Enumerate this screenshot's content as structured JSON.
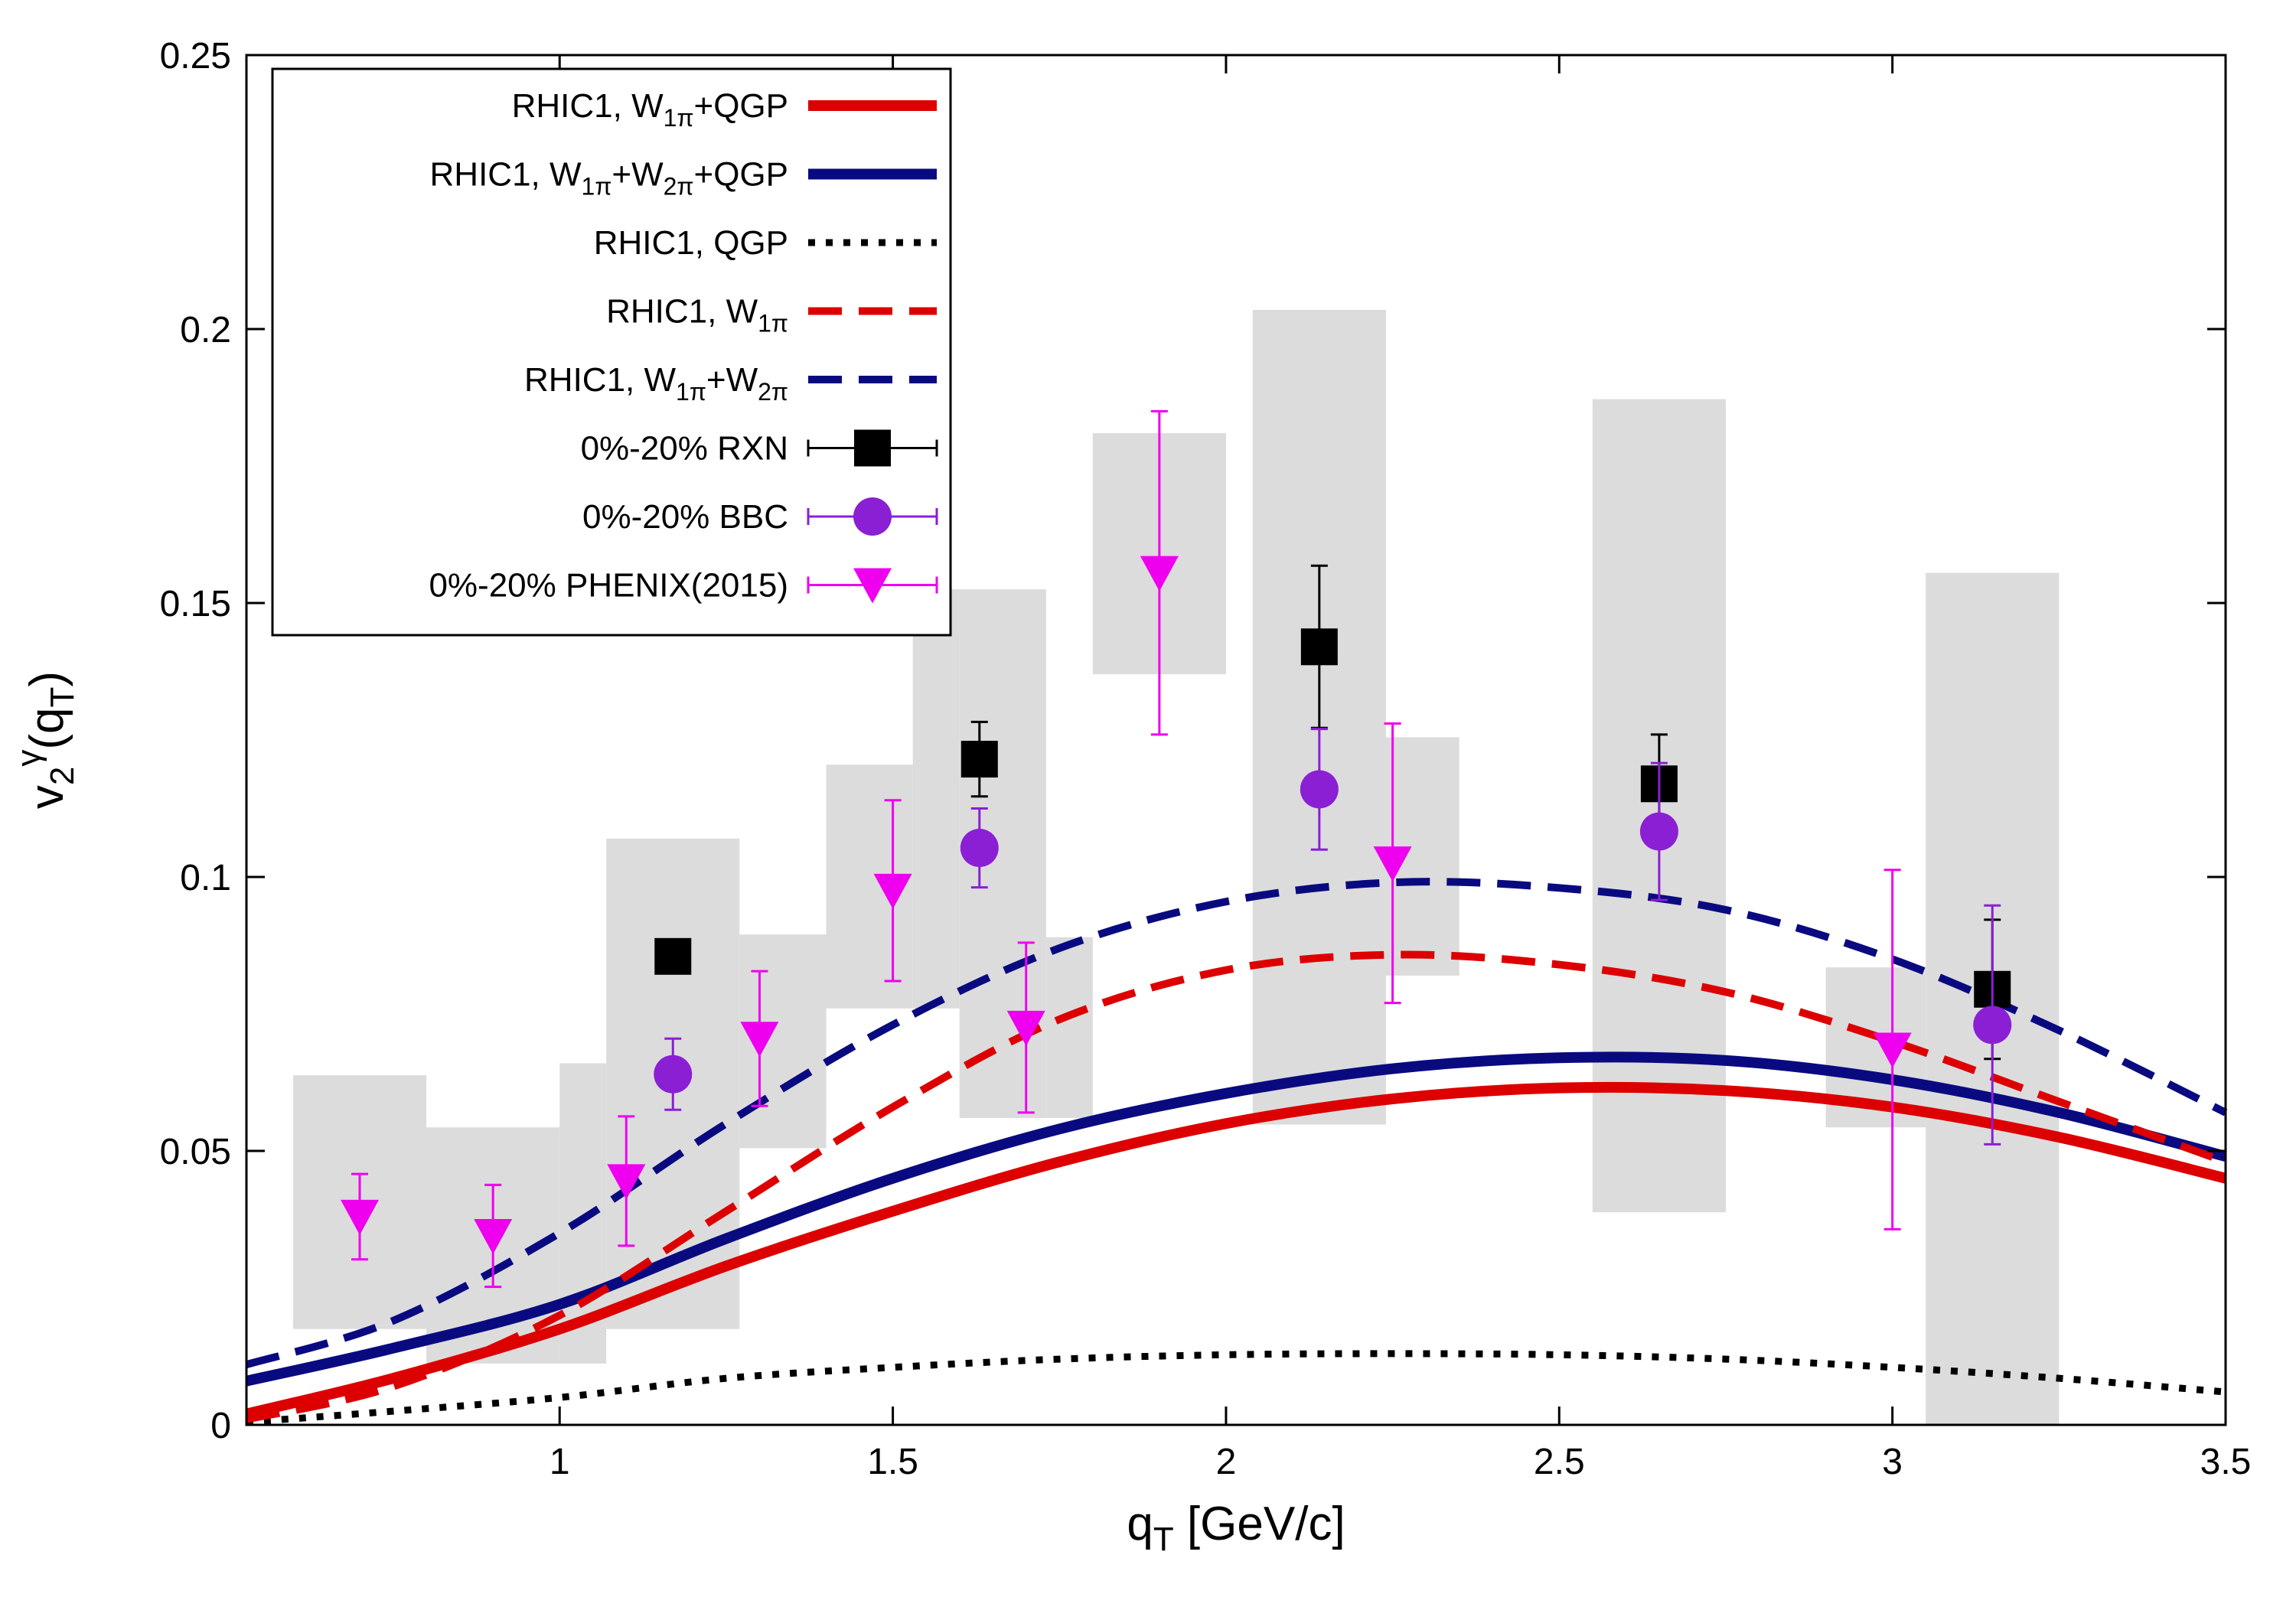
{
  "chart_data": {
    "type": "line",
    "xlabel": "q",
    "xlabel_sub": "T",
    "xlabel_unit": " [GeV/c]",
    "ylabel": "v",
    "ylabel_sub": "2",
    "ylabel_sup": "γ",
    "ylabel_paren_open": "(q",
    "ylabel_paren_sub": "T",
    "ylabel_paren_close": ")",
    "xlim": [
      0.53,
      3.5
    ],
    "ylim": [
      0,
      0.25
    ],
    "x_ticks": [
      1,
      1.5,
      2,
      2.5,
      3,
      3.5
    ],
    "x_tick_labels": [
      "1",
      "1.5",
      "2",
      "2.5",
      "3",
      "3.5"
    ],
    "y_ticks": [
      0,
      0.05,
      0.1,
      0.15,
      0.2,
      0.25
    ],
    "y_tick_labels": [
      "0",
      "0.05",
      "0.1",
      "0.15",
      "0.2",
      "0.25"
    ],
    "legend_position": "top-left",
    "curves": [
      {
        "id": "w1pi-qgp",
        "legend": [
          {
            "t": "RHIC1, W"
          },
          {
            "t": "1π",
            "sub": true
          },
          {
            "t": "+QGP"
          }
        ],
        "color": "#dd0000",
        "style": "solid-thick",
        "x": [
          0.53,
          0.75,
          1.0,
          1.25,
          1.5,
          1.75,
          2.0,
          2.25,
          2.5,
          2.75,
          3.0,
          3.25,
          3.5
        ],
        "y": [
          0.002,
          0.0085,
          0.0175,
          0.029,
          0.039,
          0.048,
          0.055,
          0.0595,
          0.0615,
          0.061,
          0.058,
          0.0525,
          0.045
        ]
      },
      {
        "id": "w1pi-w2pi-qgp",
        "legend": [
          {
            "t": "RHIC1, W"
          },
          {
            "t": "1π",
            "sub": true
          },
          {
            "t": "+W"
          },
          {
            "t": "2π",
            "sub": true
          },
          {
            "t": "+QGP"
          }
        ],
        "color": "#0a0a80",
        "style": "solid-thick",
        "x": [
          0.53,
          0.75,
          1.0,
          1.25,
          1.5,
          1.75,
          2.0,
          2.25,
          2.5,
          2.75,
          3.0,
          3.25,
          3.5
        ],
        "y": [
          0.008,
          0.014,
          0.022,
          0.034,
          0.045,
          0.054,
          0.0605,
          0.065,
          0.067,
          0.0665,
          0.063,
          0.057,
          0.049
        ]
      },
      {
        "id": "qgp",
        "legend": [
          {
            "t": "RHIC1, QGP"
          }
        ],
        "color": "#000000",
        "style": "dotted",
        "x": [
          0.53,
          0.75,
          1.0,
          1.25,
          1.5,
          1.75,
          2.0,
          2.25,
          2.5,
          2.75,
          3.0,
          3.25,
          3.5
        ],
        "y": [
          0.0005,
          0.0025,
          0.005,
          0.0085,
          0.0105,
          0.012,
          0.0128,
          0.013,
          0.0128,
          0.012,
          0.0105,
          0.0085,
          0.006
        ]
      },
      {
        "id": "w1pi",
        "legend": [
          {
            "t": "RHIC1, W"
          },
          {
            "t": "1π",
            "sub": true
          }
        ],
        "color": "#dd0000",
        "style": "dashed",
        "x": [
          0.53,
          0.75,
          1.0,
          1.25,
          1.5,
          1.75,
          2.0,
          2.25,
          2.5,
          2.75,
          3.0,
          3.25,
          3.5
        ],
        "y": [
          0.001,
          0.007,
          0.02,
          0.039,
          0.058,
          0.074,
          0.083,
          0.0858,
          0.084,
          0.079,
          0.07,
          0.059,
          0.048
        ]
      },
      {
        "id": "w1pi-w2pi",
        "legend": [
          {
            "t": "RHIC1, W"
          },
          {
            "t": "1π",
            "sub": true
          },
          {
            "t": "+W"
          },
          {
            "t": "2π",
            "sub": true
          }
        ],
        "color": "#0a0a80",
        "style": "dashed",
        "x": [
          0.53,
          0.75,
          1.0,
          1.25,
          1.5,
          1.75,
          2.0,
          2.25,
          2.5,
          2.75,
          3.0,
          3.25,
          3.5
        ],
        "y": [
          0.011,
          0.019,
          0.035,
          0.055,
          0.073,
          0.087,
          0.0955,
          0.099,
          0.098,
          0.094,
          0.085,
          0.072,
          0.057
        ]
      }
    ],
    "series": [
      {
        "id": "rxn",
        "legend": [
          {
            "t": "0%-20% RXN"
          }
        ],
        "marker": "square",
        "color": "#000000",
        "points": [
          {
            "x": 1.17,
            "y": 0.0855,
            "err": 0
          },
          {
            "x": 1.63,
            "y": 0.1215,
            "err": 0.0068
          },
          {
            "x": 2.14,
            "y": 0.142,
            "err": 0.0148
          },
          {
            "x": 2.65,
            "y": 0.117,
            "err": 0.009
          },
          {
            "x": 3.15,
            "y": 0.0795,
            "err": 0.0127
          }
        ]
      },
      {
        "id": "bbc",
        "legend": [
          {
            "t": "0%-20% BBC"
          }
        ],
        "marker": "circle",
        "color": "#8a1fd4",
        "points": [
          {
            "x": 1.17,
            "y": 0.064,
            "err": 0.0065
          },
          {
            "x": 1.63,
            "y": 0.1053,
            "err": 0.0072
          },
          {
            "x": 2.14,
            "y": 0.116,
            "err": 0.011
          },
          {
            "x": 2.65,
            "y": 0.1083,
            "err": 0.0125
          },
          {
            "x": 3.15,
            "y": 0.073,
            "err": 0.0218
          }
        ]
      },
      {
        "id": "phenix2015",
        "legend": [
          {
            "t": "0%-20% PHENIX(2015)"
          }
        ],
        "marker": "triangle-down",
        "color": "#ee00ee",
        "points": [
          {
            "x": 0.7,
            "y": 0.038,
            "err": 0.0078
          },
          {
            "x": 0.9,
            "y": 0.0345,
            "err": 0.0093
          },
          {
            "x": 1.1,
            "y": 0.0445,
            "err": 0.0118
          },
          {
            "x": 1.3,
            "y": 0.0705,
            "err": 0.0123
          },
          {
            "x": 1.5,
            "y": 0.0975,
            "err": 0.0165
          },
          {
            "x": 1.7,
            "y": 0.0725,
            "err": 0.0155
          },
          {
            "x": 1.9,
            "y": 0.1555,
            "err": 0.0295
          },
          {
            "x": 2.25,
            "y": 0.1025,
            "err": 0.0255
          },
          {
            "x": 3.0,
            "y": 0.0685,
            "err": 0.0328
          }
        ]
      }
    ],
    "systematic_boxes": [
      {
        "x0": 0.6,
        "x1": 0.8,
        "y0": 0.0175,
        "y1": 0.0638
      },
      {
        "x0": 0.8,
        "x1": 1.0,
        "y0": 0.0112,
        "y1": 0.0543
      },
      {
        "x0": 1.0,
        "x1": 1.07,
        "y0": 0.0112,
        "y1": 0.066
      },
      {
        "x0": 1.07,
        "x1": 1.27,
        "y0": 0.0175,
        "y1": 0.107
      },
      {
        "x0": 1.27,
        "x1": 1.4,
        "y0": 0.0505,
        "y1": 0.0895
      },
      {
        "x0": 1.4,
        "x1": 1.53,
        "y0": 0.076,
        "y1": 0.1205
      },
      {
        "x0": 1.53,
        "x1": 1.6,
        "y0": 0.076,
        "y1": 0.1525
      },
      {
        "x0": 1.6,
        "x1": 1.73,
        "y0": 0.056,
        "y1": 0.1525
      },
      {
        "x0": 1.73,
        "x1": 1.8,
        "y0": 0.056,
        "y1": 0.089
      },
      {
        "x0": 1.8,
        "x1": 2.0,
        "y0": 0.137,
        "y1": 0.181
      },
      {
        "x0": 2.04,
        "x1": 2.24,
        "y0": 0.0548,
        "y1": 0.2035
      },
      {
        "x0": 2.24,
        "x1": 2.35,
        "y0": 0.082,
        "y1": 0.1255
      },
      {
        "x0": 2.55,
        "x1": 2.75,
        "y0": 0.0388,
        "y1": 0.1872
      },
      {
        "x0": 2.9,
        "x1": 3.05,
        "y0": 0.0543,
        "y1": 0.0835
      },
      {
        "x0": 3.05,
        "x1": 3.25,
        "y0": 0,
        "y1": 0.1555
      }
    ]
  }
}
